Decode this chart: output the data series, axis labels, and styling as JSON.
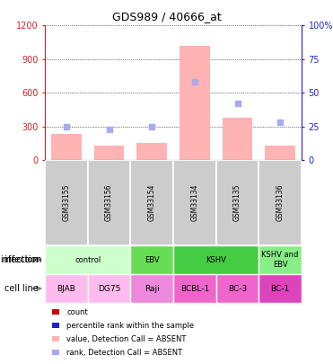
{
  "title": "GDS989 / 40666_at",
  "samples": [
    "GSM33155",
    "GSM33156",
    "GSM33154",
    "GSM33134",
    "GSM33135",
    "GSM33136"
  ],
  "bar_values": [
    230,
    130,
    150,
    1020,
    380,
    130
  ],
  "bar_color": "#ffb3b3",
  "rank_dots": [
    25,
    23,
    25,
    58,
    42,
    28
  ],
  "rank_color": "#aaaaee",
  "ylim_left": [
    0,
    1200
  ],
  "ylim_right": [
    0,
    100
  ],
  "yticks_left": [
    0,
    300,
    600,
    900,
    1200
  ],
  "ytick_labels_right": [
    "0",
    "25",
    "50",
    "75",
    "100%"
  ],
  "infection_groups": [
    {
      "label": "control",
      "span": [
        0,
        2
      ],
      "color": "#ccffcc"
    },
    {
      "label": "EBV",
      "span": [
        2,
        3
      ],
      "color": "#66dd55"
    },
    {
      "label": "KSHV",
      "span": [
        3,
        5
      ],
      "color": "#44cc44"
    },
    {
      "label": "KSHV and\nEBV",
      "span": [
        5,
        6
      ],
      "color": "#88ee88"
    }
  ],
  "cell_lines": [
    {
      "label": "BJAB",
      "span": [
        0,
        1
      ],
      "color": "#ffbbee"
    },
    {
      "label": "DG75",
      "span": [
        1,
        2
      ],
      "color": "#ffbbee"
    },
    {
      "label": "Raji",
      "span": [
        2,
        3
      ],
      "color": "#ee88dd"
    },
    {
      "label": "BCBL-1",
      "span": [
        3,
        4
      ],
      "color": "#ee66cc"
    },
    {
      "label": "BC-3",
      "span": [
        4,
        5
      ],
      "color": "#ee66cc"
    },
    {
      "label": "BC-1",
      "span": [
        5,
        6
      ],
      "color": "#dd44bb"
    }
  ],
  "legend_items": [
    {
      "color": "#cc0000",
      "label": "count"
    },
    {
      "color": "#2222cc",
      "label": "percentile rank within the sample"
    },
    {
      "color": "#ffb3b3",
      "label": "value, Detection Call = ABSENT"
    },
    {
      "color": "#aaaaee",
      "label": "rank, Detection Call = ABSENT"
    }
  ],
  "left_axis_color": "#cc2222",
  "right_axis_color": "#2222cc",
  "sample_box_color": "#cccccc",
  "grid_color": "#000000"
}
